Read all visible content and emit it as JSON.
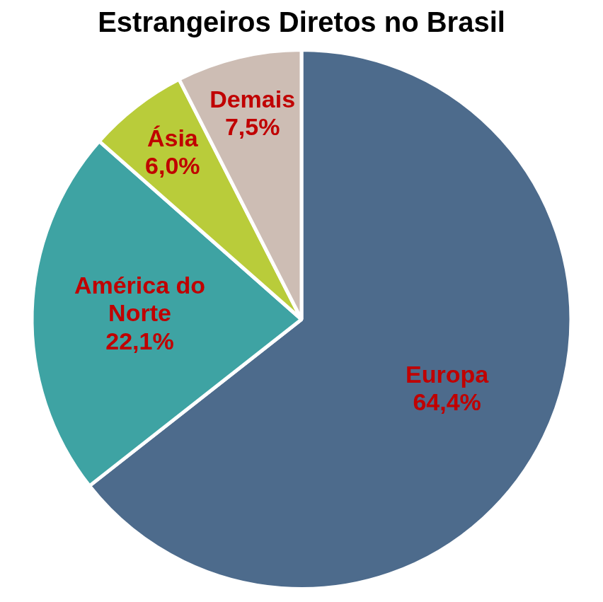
{
  "chart_data": {
    "type": "pie",
    "title": "Estrangeiros Diretos no Brasil",
    "categories": [
      "Europa",
      "América do Norte",
      "Ásia",
      "Demais"
    ],
    "values": [
      64.4,
      22.1,
      6.0,
      7.5
    ],
    "value_labels": [
      "64,4%",
      "22,1%",
      "6,0%",
      "7,5%"
    ],
    "colors": [
      "#4d6b8c",
      "#3ea3a3",
      "#b9cc3a",
      "#cdbdb4"
    ],
    "data_labels": true
  }
}
